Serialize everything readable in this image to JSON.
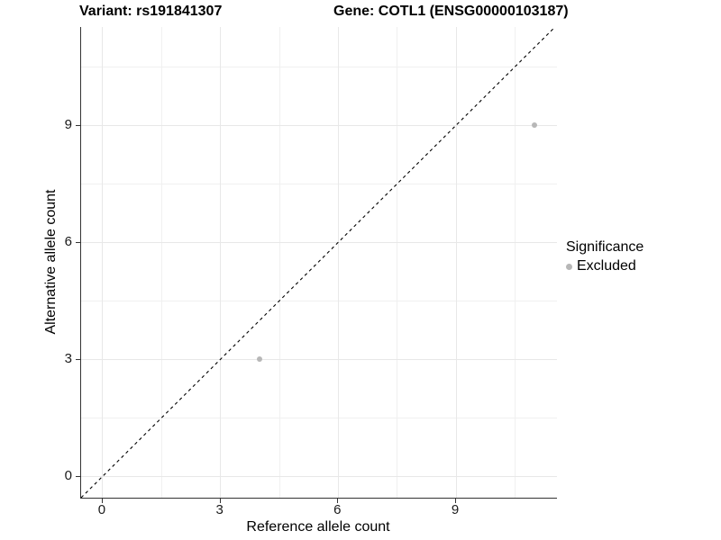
{
  "figure": {
    "title_left": "Variant: rs191841307",
    "title_right": "Gene: COTL1 (ENSG00000103187)"
  },
  "legend": {
    "title": "Significance",
    "items": [
      {
        "label": "Excluded",
        "color": "#b7b7b7"
      }
    ]
  },
  "chart_data": {
    "type": "scatter",
    "title": "Variant: rs191841307 — Gene: COTL1 (ENSG00000103187)",
    "xlabel": "Reference allele count",
    "ylabel": "Alternative allele count",
    "xlim": [
      -0.55,
      11.57
    ],
    "ylim": [
      -0.55,
      11.52
    ],
    "x_ticks": [
      0,
      3,
      6,
      9
    ],
    "y_ticks": [
      0,
      3,
      6,
      9
    ],
    "x_minor_gridlines": [
      1.5,
      4.5,
      7.5,
      10.5
    ],
    "y_minor_gridlines": [
      1.5,
      4.5,
      7.5,
      10.5
    ],
    "grid": true,
    "legend_position": "right",
    "series": [
      {
        "name": "Excluded",
        "color": "#b7b7b7",
        "points": [
          {
            "x": 4,
            "y": 3
          },
          {
            "x": 11,
            "y": 9
          }
        ]
      }
    ],
    "reference_line": {
      "type": "identity",
      "slope": 1,
      "intercept": 0,
      "style": "dashed",
      "color": "#000000"
    }
  },
  "colors": {
    "grid_major": "#e8e8e8",
    "grid_minor": "#f0f0f0",
    "axis_line": "#333333",
    "text": "#000000",
    "background": "#ffffff"
  }
}
